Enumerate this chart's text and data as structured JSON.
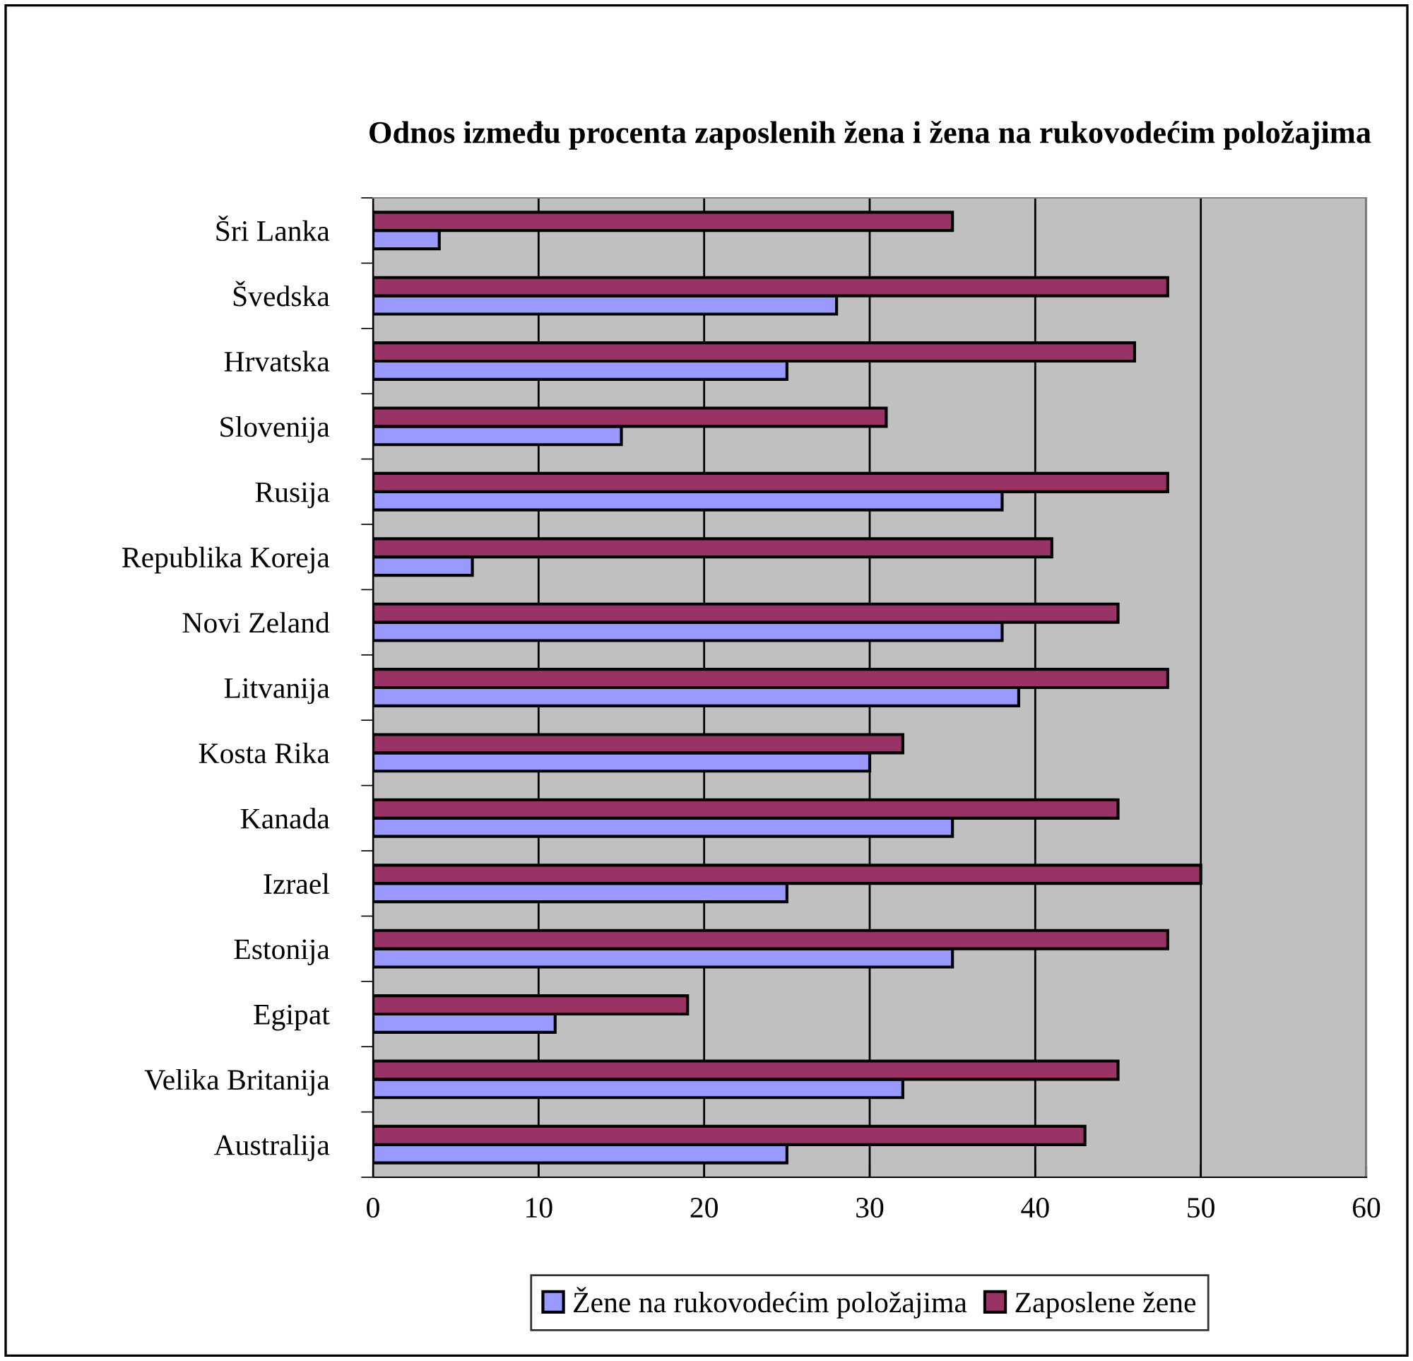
{
  "chart_data": {
    "type": "bar",
    "orientation": "horizontal",
    "title": "Odnos između procenta zaposlenih žena i žena na rukovodećim položajima",
    "categories": [
      "Šri Lanka",
      "Švedska",
      "Hrvatska",
      "Slovenija",
      "Rusija",
      "Republika Koreja",
      "Novi Zeland",
      "Litvanija",
      "Kosta Rika",
      "Kanada",
      "Izrael",
      "Estonija",
      "Egipat",
      "Velika Britanija",
      "Australija"
    ],
    "series": [
      {
        "name": "Žene na rukovodećim položajima",
        "color": "#9999ff",
        "values": [
          4,
          28,
          25,
          15,
          38,
          6,
          38,
          39,
          30,
          35,
          25,
          35,
          11,
          32,
          25
        ]
      },
      {
        "name": "Zaposlene žene",
        "color": "#993366",
        "values": [
          35,
          48,
          46,
          31,
          48,
          41,
          45,
          48,
          32,
          45,
          50,
          48,
          19,
          45,
          43
        ]
      }
    ],
    "xlim": [
      0,
      60
    ],
    "xticks": [
      0,
      10,
      20,
      30,
      40,
      50,
      60
    ],
    "grid": "x",
    "legend": "bottom"
  }
}
